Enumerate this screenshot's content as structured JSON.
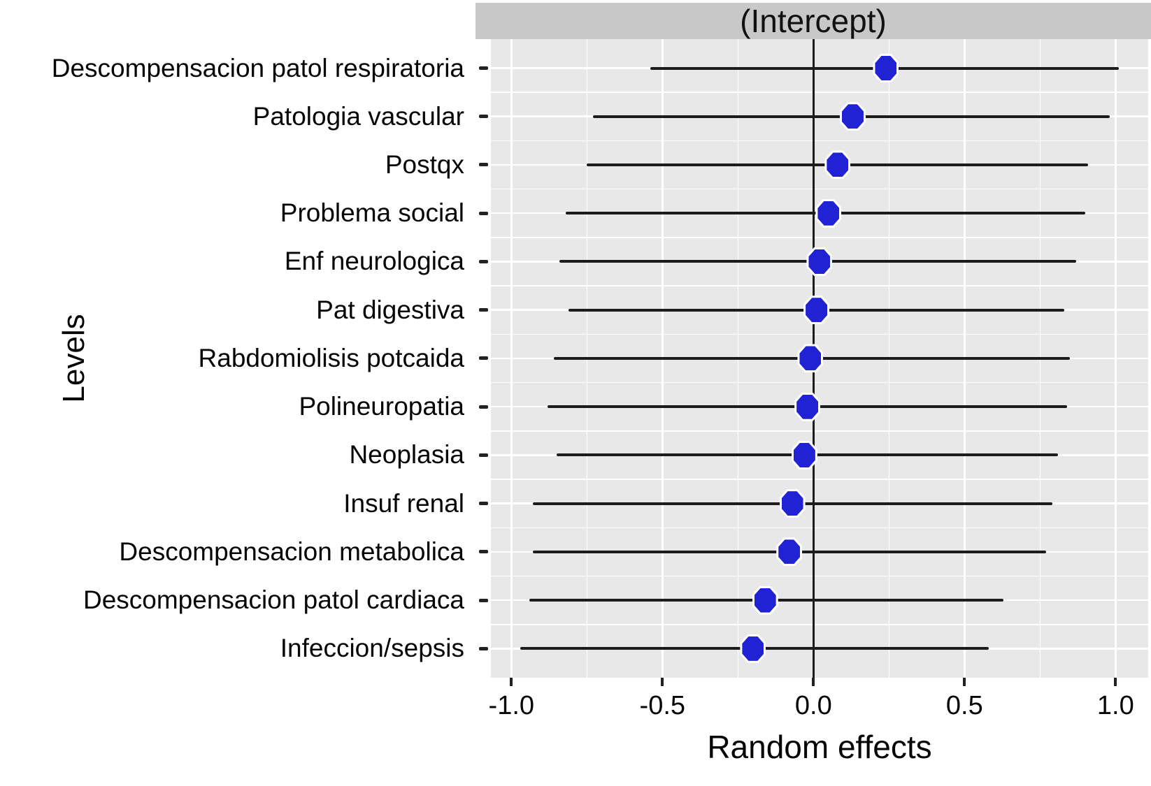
{
  "figure": {
    "strip_title": "(Intercept)",
    "x_axis_title": "Random effects",
    "y_axis_title": "Levels"
  },
  "colors": {
    "dot_fill": "#2222d5",
    "dot_halo": "#ffffff",
    "error_bar": "#1c1c1c",
    "reference_line": "#1c1c1c",
    "panel_background": "#e8e8e8",
    "strip_background": "#c8c8c8",
    "gridline": "#ffffff",
    "text": "#050505"
  },
  "chart_data": {
    "type": "scatter",
    "subtype": "forest-dot-whisker",
    "title": "(Intercept)",
    "xlabel": "Random effects",
    "ylabel": "Levels",
    "xlim": [
      -1.07,
      1.11
    ],
    "x_major_ticks": [
      -1.0,
      -0.5,
      0.0,
      0.5,
      1.0
    ],
    "x_tick_labels": [
      "-1.0",
      "-0.5",
      "0.0",
      "0.5",
      "1.0"
    ],
    "x_minor_gridlines": [
      -0.75,
      -0.25,
      0.25,
      0.75
    ],
    "reference_line_x": 0,
    "grid": true,
    "legend_position": "none",
    "categories": [
      "Descompensacion patol respiratoria",
      "Patologia vascular",
      "Postqx",
      "Problema social",
      "Enf neurologica",
      "Pat digestiva",
      "Rabdomiolisis potcaida",
      "Polineuropatia",
      "Neoplasia",
      "Insuf renal",
      "Descompensacion metabolica",
      "Descompensacion patol cardiaca",
      "Infeccion/sepsis"
    ],
    "series": [
      {
        "name": "(Intercept) random effects",
        "estimates": [
          0.24,
          0.13,
          0.08,
          0.05,
          0.02,
          0.01,
          -0.01,
          -0.02,
          -0.03,
          -0.07,
          -0.08,
          -0.16,
          -0.2
        ],
        "ci_low": [
          -0.54,
          -0.73,
          -0.75,
          -0.82,
          -0.84,
          -0.81,
          -0.86,
          -0.88,
          -0.85,
          -0.93,
          -0.93,
          -0.94,
          -0.97
        ],
        "ci_high": [
          1.01,
          0.98,
          0.91,
          0.9,
          0.87,
          0.83,
          0.85,
          0.84,
          0.81,
          0.79,
          0.77,
          0.63,
          0.58
        ]
      }
    ]
  }
}
